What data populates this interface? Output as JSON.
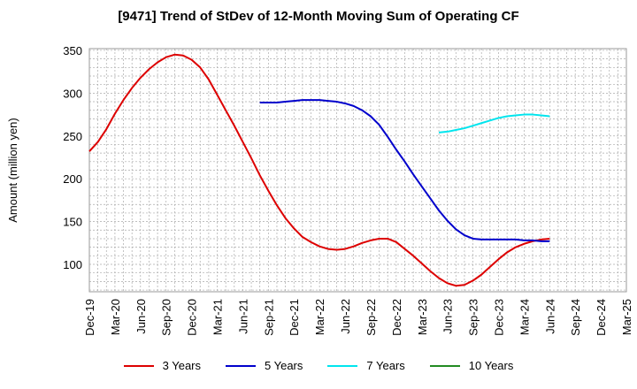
{
  "chart_data": {
    "type": "line",
    "title": "[9471]  Trend of StDev of 12-Month Moving Sum of Operating CF",
    "xlabel": "",
    "ylabel": "Amount (million yen)",
    "ylim": [
      68,
      352
    ],
    "yticks": [
      100,
      150,
      200,
      250,
      300,
      350
    ],
    "xlim": [
      "2019-12",
      "2025-03"
    ],
    "xticks": [
      "Dec-19",
      "Mar-20",
      "Jun-20",
      "Sep-20",
      "Dec-20",
      "Mar-21",
      "Jun-21",
      "Sep-21",
      "Dec-21",
      "Mar-22",
      "Jun-22",
      "Sep-22",
      "Dec-22",
      "Mar-23",
      "Jun-23",
      "Sep-23",
      "Dec-23",
      "Mar-24",
      "Jun-24",
      "Sep-24",
      "Dec-24",
      "Mar-25"
    ],
    "grid": true,
    "legend_position": "bottom",
    "series": [
      {
        "name": "3 Years",
        "color": "#dd0000",
        "points": [
          [
            "2019-12",
            232
          ],
          [
            "2020-01",
            243
          ],
          [
            "2020-02",
            258
          ],
          [
            "2020-03",
            276
          ],
          [
            "2020-04",
            292
          ],
          [
            "2020-05",
            306
          ],
          [
            "2020-06",
            318
          ],
          [
            "2020-07",
            328
          ],
          [
            "2020-08",
            336
          ],
          [
            "2020-09",
            342
          ],
          [
            "2020-10",
            345
          ],
          [
            "2020-11",
            344
          ],
          [
            "2020-12",
            339
          ],
          [
            "2021-01",
            330
          ],
          [
            "2021-02",
            316
          ],
          [
            "2021-03",
            298
          ],
          [
            "2021-04",
            280
          ],
          [
            "2021-05",
            262
          ],
          [
            "2021-06",
            243
          ],
          [
            "2021-07",
            224
          ],
          [
            "2021-08",
            204
          ],
          [
            "2021-09",
            186
          ],
          [
            "2021-10",
            169
          ],
          [
            "2021-11",
            154
          ],
          [
            "2021-12",
            142
          ],
          [
            "2022-01",
            132
          ],
          [
            "2022-02",
            126
          ],
          [
            "2022-03",
            121
          ],
          [
            "2022-04",
            118
          ],
          [
            "2022-05",
            117
          ],
          [
            "2022-06",
            118
          ],
          [
            "2022-07",
            121
          ],
          [
            "2022-08",
            125
          ],
          [
            "2022-09",
            128
          ],
          [
            "2022-10",
            130
          ],
          [
            "2022-11",
            130
          ],
          [
            "2022-12",
            126
          ],
          [
            "2023-01",
            118
          ],
          [
            "2023-02",
            110
          ],
          [
            "2023-03",
            101
          ],
          [
            "2023-04",
            92
          ],
          [
            "2023-05",
            84
          ],
          [
            "2023-06",
            78
          ],
          [
            "2023-07",
            75
          ],
          [
            "2023-08",
            76
          ],
          [
            "2023-09",
            81
          ],
          [
            "2023-10",
            88
          ],
          [
            "2023-11",
            97
          ],
          [
            "2023-12",
            106
          ],
          [
            "2024-01",
            114
          ],
          [
            "2024-02",
            120
          ],
          [
            "2024-03",
            124
          ],
          [
            "2024-04",
            127
          ],
          [
            "2024-05",
            129
          ],
          [
            "2024-06",
            130
          ]
        ]
      },
      {
        "name": "5 Years",
        "color": "#0000cc",
        "points": [
          [
            "2021-08",
            289
          ],
          [
            "2021-09",
            289
          ],
          [
            "2021-10",
            289
          ],
          [
            "2021-11",
            290
          ],
          [
            "2021-12",
            291
          ],
          [
            "2022-01",
            292
          ],
          [
            "2022-02",
            292
          ],
          [
            "2022-03",
            292
          ],
          [
            "2022-04",
            291
          ],
          [
            "2022-05",
            290
          ],
          [
            "2022-06",
            288
          ],
          [
            "2022-07",
            285
          ],
          [
            "2022-08",
            280
          ],
          [
            "2022-09",
            273
          ],
          [
            "2022-10",
            263
          ],
          [
            "2022-11",
            249
          ],
          [
            "2022-12",
            234
          ],
          [
            "2023-01",
            220
          ],
          [
            "2023-02",
            205
          ],
          [
            "2023-03",
            191
          ],
          [
            "2023-04",
            177
          ],
          [
            "2023-05",
            163
          ],
          [
            "2023-06",
            151
          ],
          [
            "2023-07",
            141
          ],
          [
            "2023-08",
            134
          ],
          [
            "2023-09",
            130
          ],
          [
            "2023-10",
            129
          ],
          [
            "2023-11",
            129
          ],
          [
            "2023-12",
            129
          ],
          [
            "2024-01",
            129
          ],
          [
            "2024-02",
            129
          ],
          [
            "2024-03",
            128
          ],
          [
            "2024-04",
            128
          ],
          [
            "2024-05",
            127
          ],
          [
            "2024-06",
            127
          ]
        ]
      },
      {
        "name": "7 Years",
        "color": "#00e5ee",
        "points": [
          [
            "2023-05",
            254
          ],
          [
            "2023-06",
            255
          ],
          [
            "2023-07",
            257
          ],
          [
            "2023-08",
            259
          ],
          [
            "2023-09",
            262
          ],
          [
            "2023-10",
            265
          ],
          [
            "2023-11",
            268
          ],
          [
            "2023-12",
            271
          ],
          [
            "2024-01",
            273
          ],
          [
            "2024-02",
            274
          ],
          [
            "2024-03",
            275
          ],
          [
            "2024-04",
            275
          ],
          [
            "2024-05",
            274
          ],
          [
            "2024-06",
            273
          ]
        ]
      },
      {
        "name": "10 Years",
        "color": "#228b22",
        "points": []
      }
    ]
  }
}
